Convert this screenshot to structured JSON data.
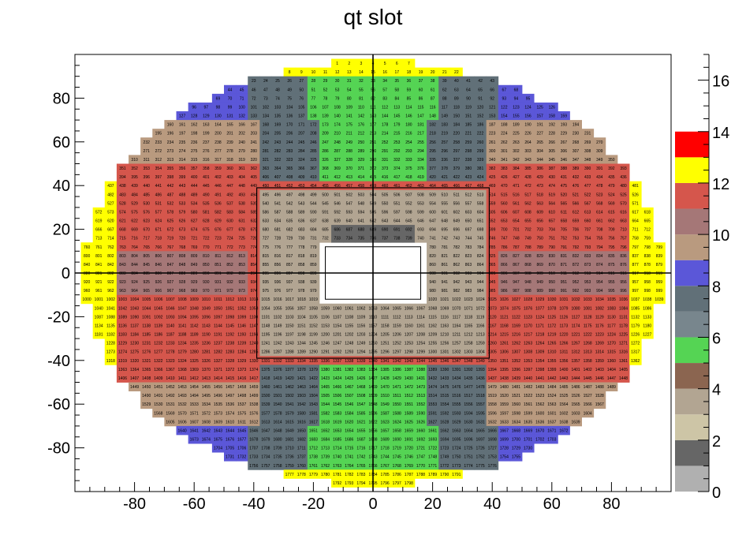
{
  "title": "qt slot",
  "chart_data": {
    "type": "heatmap",
    "title": "qt slot",
    "xlabel": "",
    "ylabel": "",
    "xlim": [
      -100,
      100
    ],
    "ylim": [
      -100,
      100
    ],
    "x_ticks": [
      "-80",
      "-60",
      "-40",
      "-20",
      "0",
      "20",
      "40",
      "60",
      "80"
    ],
    "y_ticks": [
      "-80",
      "-60",
      "-40",
      "-20",
      "0",
      "20",
      "40",
      "60",
      "80"
    ],
    "cell_size": 4,
    "ring_radius": 97,
    "inner_square_half": 39,
    "hole": {
      "x": [
        -16,
        16
      ],
      "y": [
        -12,
        12
      ]
    },
    "z_range": [
      0,
      17
    ],
    "color_axis": {
      "ticks": [
        "0",
        "2",
        "4",
        "6",
        "8",
        "10",
        "12",
        "14",
        "16"
      ],
      "levels": [
        {
          "from": 0,
          "to": 1,
          "color": "#b0b0b0"
        },
        {
          "from": 1,
          "to": 2,
          "color": "#666666"
        },
        {
          "from": 2,
          "to": 3,
          "color": "#cdc5a6"
        },
        {
          "from": 3,
          "to": 4,
          "color": "#b2a592"
        },
        {
          "from": 4,
          "to": 5,
          "color": "#8b6550"
        },
        {
          "from": 5,
          "to": 6,
          "color": "#55d454"
        },
        {
          "from": 6,
          "to": 7,
          "color": "#78868d"
        },
        {
          "from": 7,
          "to": 8,
          "color": "#617078"
        },
        {
          "from": 8,
          "to": 9,
          "color": "#5b57d8"
        },
        {
          "from": 9,
          "to": 10,
          "color": "#b99a7f"
        },
        {
          "from": 10,
          "to": 11,
          "color": "#a57777"
        },
        {
          "from": 11,
          "to": 12,
          "color": "#d5564c"
        },
        {
          "from": 12,
          "to": 13,
          "color": "#ffff00"
        },
        {
          "from": 13,
          "to": 14,
          "color": "#ff0000"
        }
      ]
    },
    "regions": [
      {
        "name": "outer top/bottom rows",
        "rule": "|y| > 90",
        "value": 12.5
      },
      {
        "name": "upper-left/right blue",
        "rule": "70 < |y| < 90, |x| > 40",
        "value": 8.5
      },
      {
        "name": "upper-left/right slate",
        "rule": "70 < |y| < 90, 20 < |x| < 40",
        "value": 7.5
      },
      {
        "name": "central green band",
        "rule": "|x| < 20, |y| > 40",
        "value": 5.5
      },
      {
        "name": "tan band",
        "rule": "50 < |y| < 70",
        "value": 9.5
      },
      {
        "name": "red side band",
        "rule": "|x| > 40, 10 < |y| < 50",
        "value": 11.5
      },
      {
        "name": "pink side band",
        "rule": "|x| > 40, |y| < 10",
        "value": 10.5
      },
      {
        "name": "outer edge column",
        "rule": "|x| > 86",
        "value": 12.5
      },
      {
        "name": "inner square top",
        "rule": "inner square, y > 12",
        "value": 3
      },
      {
        "name": "inner square dark",
        "rule": "inner square, |x| < 16, 12 < y < 24",
        "value": 1.5
      },
      {
        "name": "inner square lower",
        "rule": "inner square, y < -12",
        "value": 3.5
      }
    ],
    "numbering": "slot numbers 1..571 assigned row by row from top to bottom, counting outward from x = 0 on each side"
  }
}
